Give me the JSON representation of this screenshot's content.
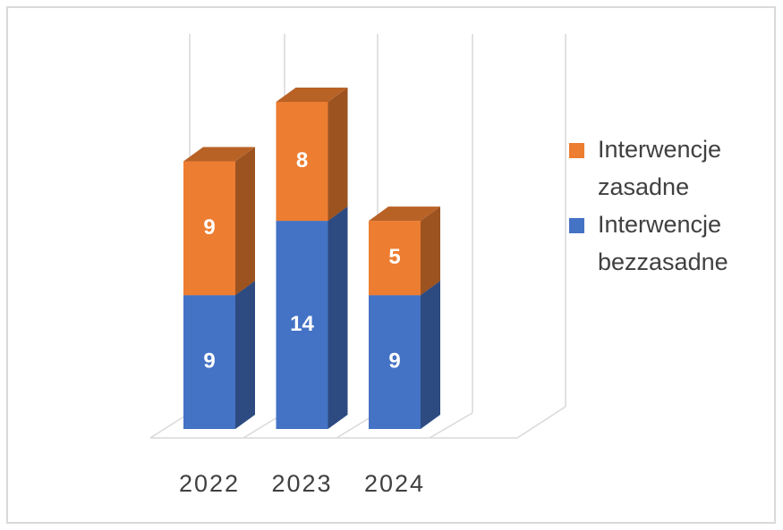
{
  "chart_data": {
    "type": "bar3d_stacked",
    "categories": [
      "2022",
      "2023",
      "2024"
    ],
    "series": [
      {
        "name": "Interwencje bezzasadne",
        "color": "#4472c4",
        "values": [
          9,
          14,
          9
        ]
      },
      {
        "name": "Interwencje zasadne",
        "color": "#ed7d31",
        "values": [
          9,
          8,
          5
        ]
      }
    ],
    "legend": "right"
  }
}
